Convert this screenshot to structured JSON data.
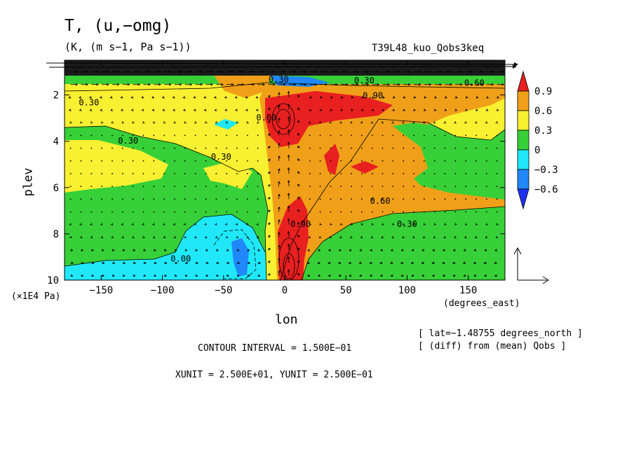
{
  "figure": {
    "title": "T, (u,−omg)",
    "subtitle": "(K, (m s−1, Pa s−1))",
    "experiment": "T39L48_kuo_Qobs3keq",
    "info_lat": "[ lat=−1.48755 degrees_north ]",
    "info_diff": "[ (diff) from (mean) Qobs ]",
    "contour_interval": "CONTOUR INTERVAL = 1.500E−01",
    "vector_units": "XUNIT = 2.500E+01, YUNIT = 2.500E−01"
  },
  "chart_data": {
    "type": "heatmap",
    "xlabel": "lon",
    "xunit": "(degrees_east)",
    "ylabel": "plev",
    "yunit": "(×1E4 Pa)",
    "xlim": [
      -180,
      180
    ],
    "ylim": [
      0.5,
      10
    ],
    "y_inverted": true,
    "x_ticks": [
      -150,
      -100,
      -50,
      0,
      50,
      100,
      150
    ],
    "x_tick_labels": [
      "−150",
      "−100",
      "−50",
      "0",
      "50",
      "100",
      "150"
    ],
    "y_ticks": [
      2,
      4,
      6,
      8,
      10
    ],
    "y_tick_labels": [
      "2",
      "4",
      "6",
      "8",
      "10"
    ],
    "colorbar": {
      "labels": [
        "0.9",
        "0.6",
        "0.3",
        "0",
        "−0.3",
        "−0.6"
      ],
      "colors": [
        "#e82020",
        "#f0a018",
        "#f8f030",
        "#38d038",
        "#20e8f8",
        "#2088f8",
        "#2030f0"
      ]
    },
    "contour_labels": [
      {
        "text": "0.30",
        "lon": -160,
        "plev": 2.45
      },
      {
        "text": "0.30",
        "lon": -128,
        "plev": 4.1
      },
      {
        "text": "0.30",
        "lon": -52,
        "plev": 4.8
      },
      {
        "text": "0.90",
        "lon": 72,
        "plev": 2.15
      },
      {
        "text": "0.60",
        "lon": 155,
        "plev": 1.6
      },
      {
        "text": "0.60",
        "lon": 78,
        "plev": 6.7
      },
      {
        "text": "0.30",
        "lon": 100,
        "plev": 7.7
      },
      {
        "text": "0.90",
        "lon": 13,
        "plev": 7.7
      },
      {
        "text": "0.30",
        "lon": 65,
        "plev": 1.5
      },
      {
        "text": "0.00",
        "lon": -85,
        "plev": 9.2
      },
      {
        "text": "0.00",
        "lon": -15,
        "plev": 3.1
      },
      {
        "text": "0.30",
        "lon": -5,
        "plev": 1.45
      }
    ],
    "regions": [
      {
        "name": "warm-east-upper",
        "value": 0.6
      },
      {
        "name": "warm-column-0lon",
        "value": 0.9
      },
      {
        "name": "cool-west-lower",
        "value": -0.3
      },
      {
        "name": "cool-core-50w",
        "value": -0.6
      }
    ]
  }
}
